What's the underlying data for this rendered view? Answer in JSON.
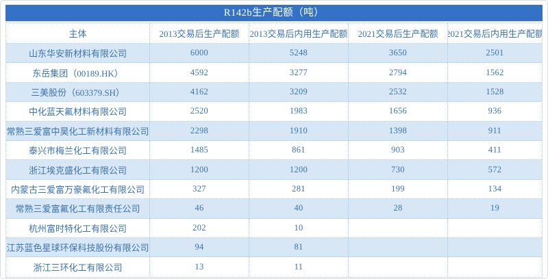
{
  "title": "R142b生产配额（吨）",
  "table": {
    "headers": [
      "主体",
      "2013交易后生产配额",
      "2013交易后内用生产配额",
      "2021交易后生产配额",
      "2021交易后内用生产配额"
    ],
    "rows": [
      {
        "name": "山东华安新材料有限公司",
        "values": [
          "6000",
          "5248",
          "3650",
          "2501"
        ]
      },
      {
        "name": "东岳集团（00189.HK）",
        "values": [
          "4592",
          "3277",
          "2794",
          "1562"
        ]
      },
      {
        "name": "三美股份（603379.SH）",
        "values": [
          "4162",
          "3209",
          "2532",
          "1528"
        ]
      },
      {
        "name": "中化蓝天氟材料有限公司",
        "values": [
          "2520",
          "1983",
          "1656",
          "936"
        ]
      },
      {
        "name": "常熟三爱富中昊化工新材料有限公司",
        "values": [
          "2298",
          "1910",
          "1398",
          "911"
        ]
      },
      {
        "name": "泰兴市梅兰化工有限公司",
        "values": [
          "1485",
          "861",
          "903",
          "411"
        ]
      },
      {
        "name": "浙江埃克盛化工有限公司",
        "values": [
          "1200",
          "1200",
          "730",
          "572"
        ]
      },
      {
        "name": "内蒙古三爱富万豪氟化工有限公司",
        "values": [
          "327",
          "281",
          "199",
          "134"
        ]
      },
      {
        "name": "常熟三爱富氟化工有限责任公司",
        "values": [
          "46",
          "40",
          "28",
          "19"
        ]
      },
      {
        "name": "杭州富时特化工有限公司",
        "values": [
          "202",
          "10",
          "",
          ""
        ]
      },
      {
        "name": "江苏蓝色星球环保科技股份有限公司",
        "values": [
          "94",
          "81",
          "",
          ""
        ]
      },
      {
        "name": "浙江三环化工有限公司",
        "values": [
          "13",
          "11",
          "",
          ""
        ]
      }
    ]
  },
  "colors": {
    "titlebar_bg": "#3372c4",
    "titlebar_text": "#ffffff",
    "row_alt_bg": "#d8e7f5",
    "text": "#3b73af",
    "border": "#a6c7e7"
  }
}
